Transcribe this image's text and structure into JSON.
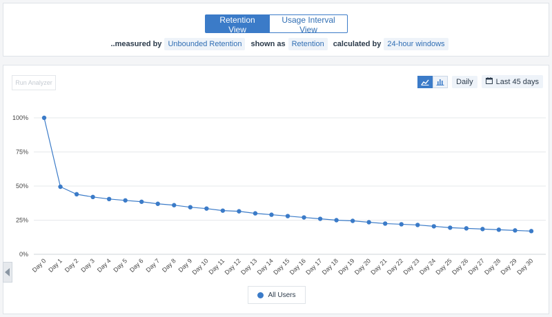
{
  "view_toggle": {
    "active_label": "Retention View",
    "inactive_label": "Usage Interval View"
  },
  "measure": {
    "measured_by_label": "..measured by",
    "measured_by_value": "Unbounded Retention",
    "shown_as_label": "shown as",
    "shown_as_value": "Retention",
    "calculated_by_label": "calculated by",
    "calculated_by_value": "24-hour windows"
  },
  "toolbar": {
    "run_label": "Run Analyzer",
    "interval_label": "Daily",
    "range_label": "Last 45 days",
    "line_icon": "line-chart-icon",
    "bar_icon": "bar-chart-icon",
    "calendar_icon": "calendar-icon"
  },
  "colors": {
    "accent": "#3b7bc8"
  },
  "chart_data": {
    "type": "line",
    "categories": [
      "Day 0",
      "Day 1",
      "Day 2",
      "Day 3",
      "Day 4",
      "Day 5",
      "Day 6",
      "Day 7",
      "Day 8",
      "Day 9",
      "Day 10",
      "Day 11",
      "Day 12",
      "Day 13",
      "Day 14",
      "Day 15",
      "Day 16",
      "Day 17",
      "Day 18",
      "Day 19",
      "Day 20",
      "Day 21",
      "Day 22",
      "Day 23",
      "Day 24",
      "Day 25",
      "Day 26",
      "Day 27",
      "Day 28",
      "Day 29",
      "Day 30"
    ],
    "series": [
      {
        "name": "All Users",
        "values": [
          100,
          49.5,
          44,
          42,
          40.5,
          39.5,
          38.5,
          37,
          36,
          34.5,
          33.5,
          32,
          31.5,
          30,
          29,
          28,
          27,
          26,
          25,
          24.5,
          23.5,
          22.5,
          22,
          21.5,
          20.5,
          19.5,
          19,
          18.5,
          18,
          17.5,
          17
        ]
      }
    ],
    "y_ticks": [
      "0%",
      "25%",
      "50%",
      "75%",
      "100%"
    ],
    "ylim": [
      0,
      100
    ],
    "grid": true,
    "legend": "bottom-center"
  }
}
